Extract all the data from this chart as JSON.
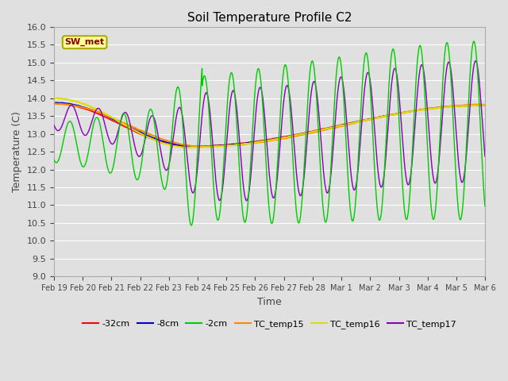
{
  "title": "Soil Temperature Profile C2",
  "xlabel": "Time",
  "ylabel": "Temperature (C)",
  "ylim": [
    9.0,
    16.0
  ],
  "ytick_values": [
    9.0,
    9.5,
    10.0,
    10.5,
    11.0,
    11.5,
    12.0,
    12.5,
    13.0,
    13.5,
    14.0,
    14.5,
    15.0,
    15.5,
    16.0
  ],
  "xtick_labels": [
    "Feb 19",
    "Feb 20",
    "Feb 21",
    "Feb 22",
    "Feb 23",
    "Feb 24",
    "Feb 25",
    "Feb 26",
    "Feb 27",
    "Feb 28",
    "Mar 1",
    "Mar 2",
    "Mar 3",
    "Mar 4",
    "Mar 5",
    "Mar 6"
  ],
  "series_colors": {
    "-32cm": "#ff0000",
    "-8cm": "#0000cc",
    "-2cm": "#00cc00",
    "TC_temp15": "#ff8800",
    "TC_temp16": "#dddd00",
    "TC_temp17": "#8800bb"
  },
  "legend_label": "SW_met",
  "fig_facecolor": "#e0e0e0",
  "plot_facecolor": "#e0e0e0",
  "grid_color": "#ffffff",
  "n_days": 16
}
